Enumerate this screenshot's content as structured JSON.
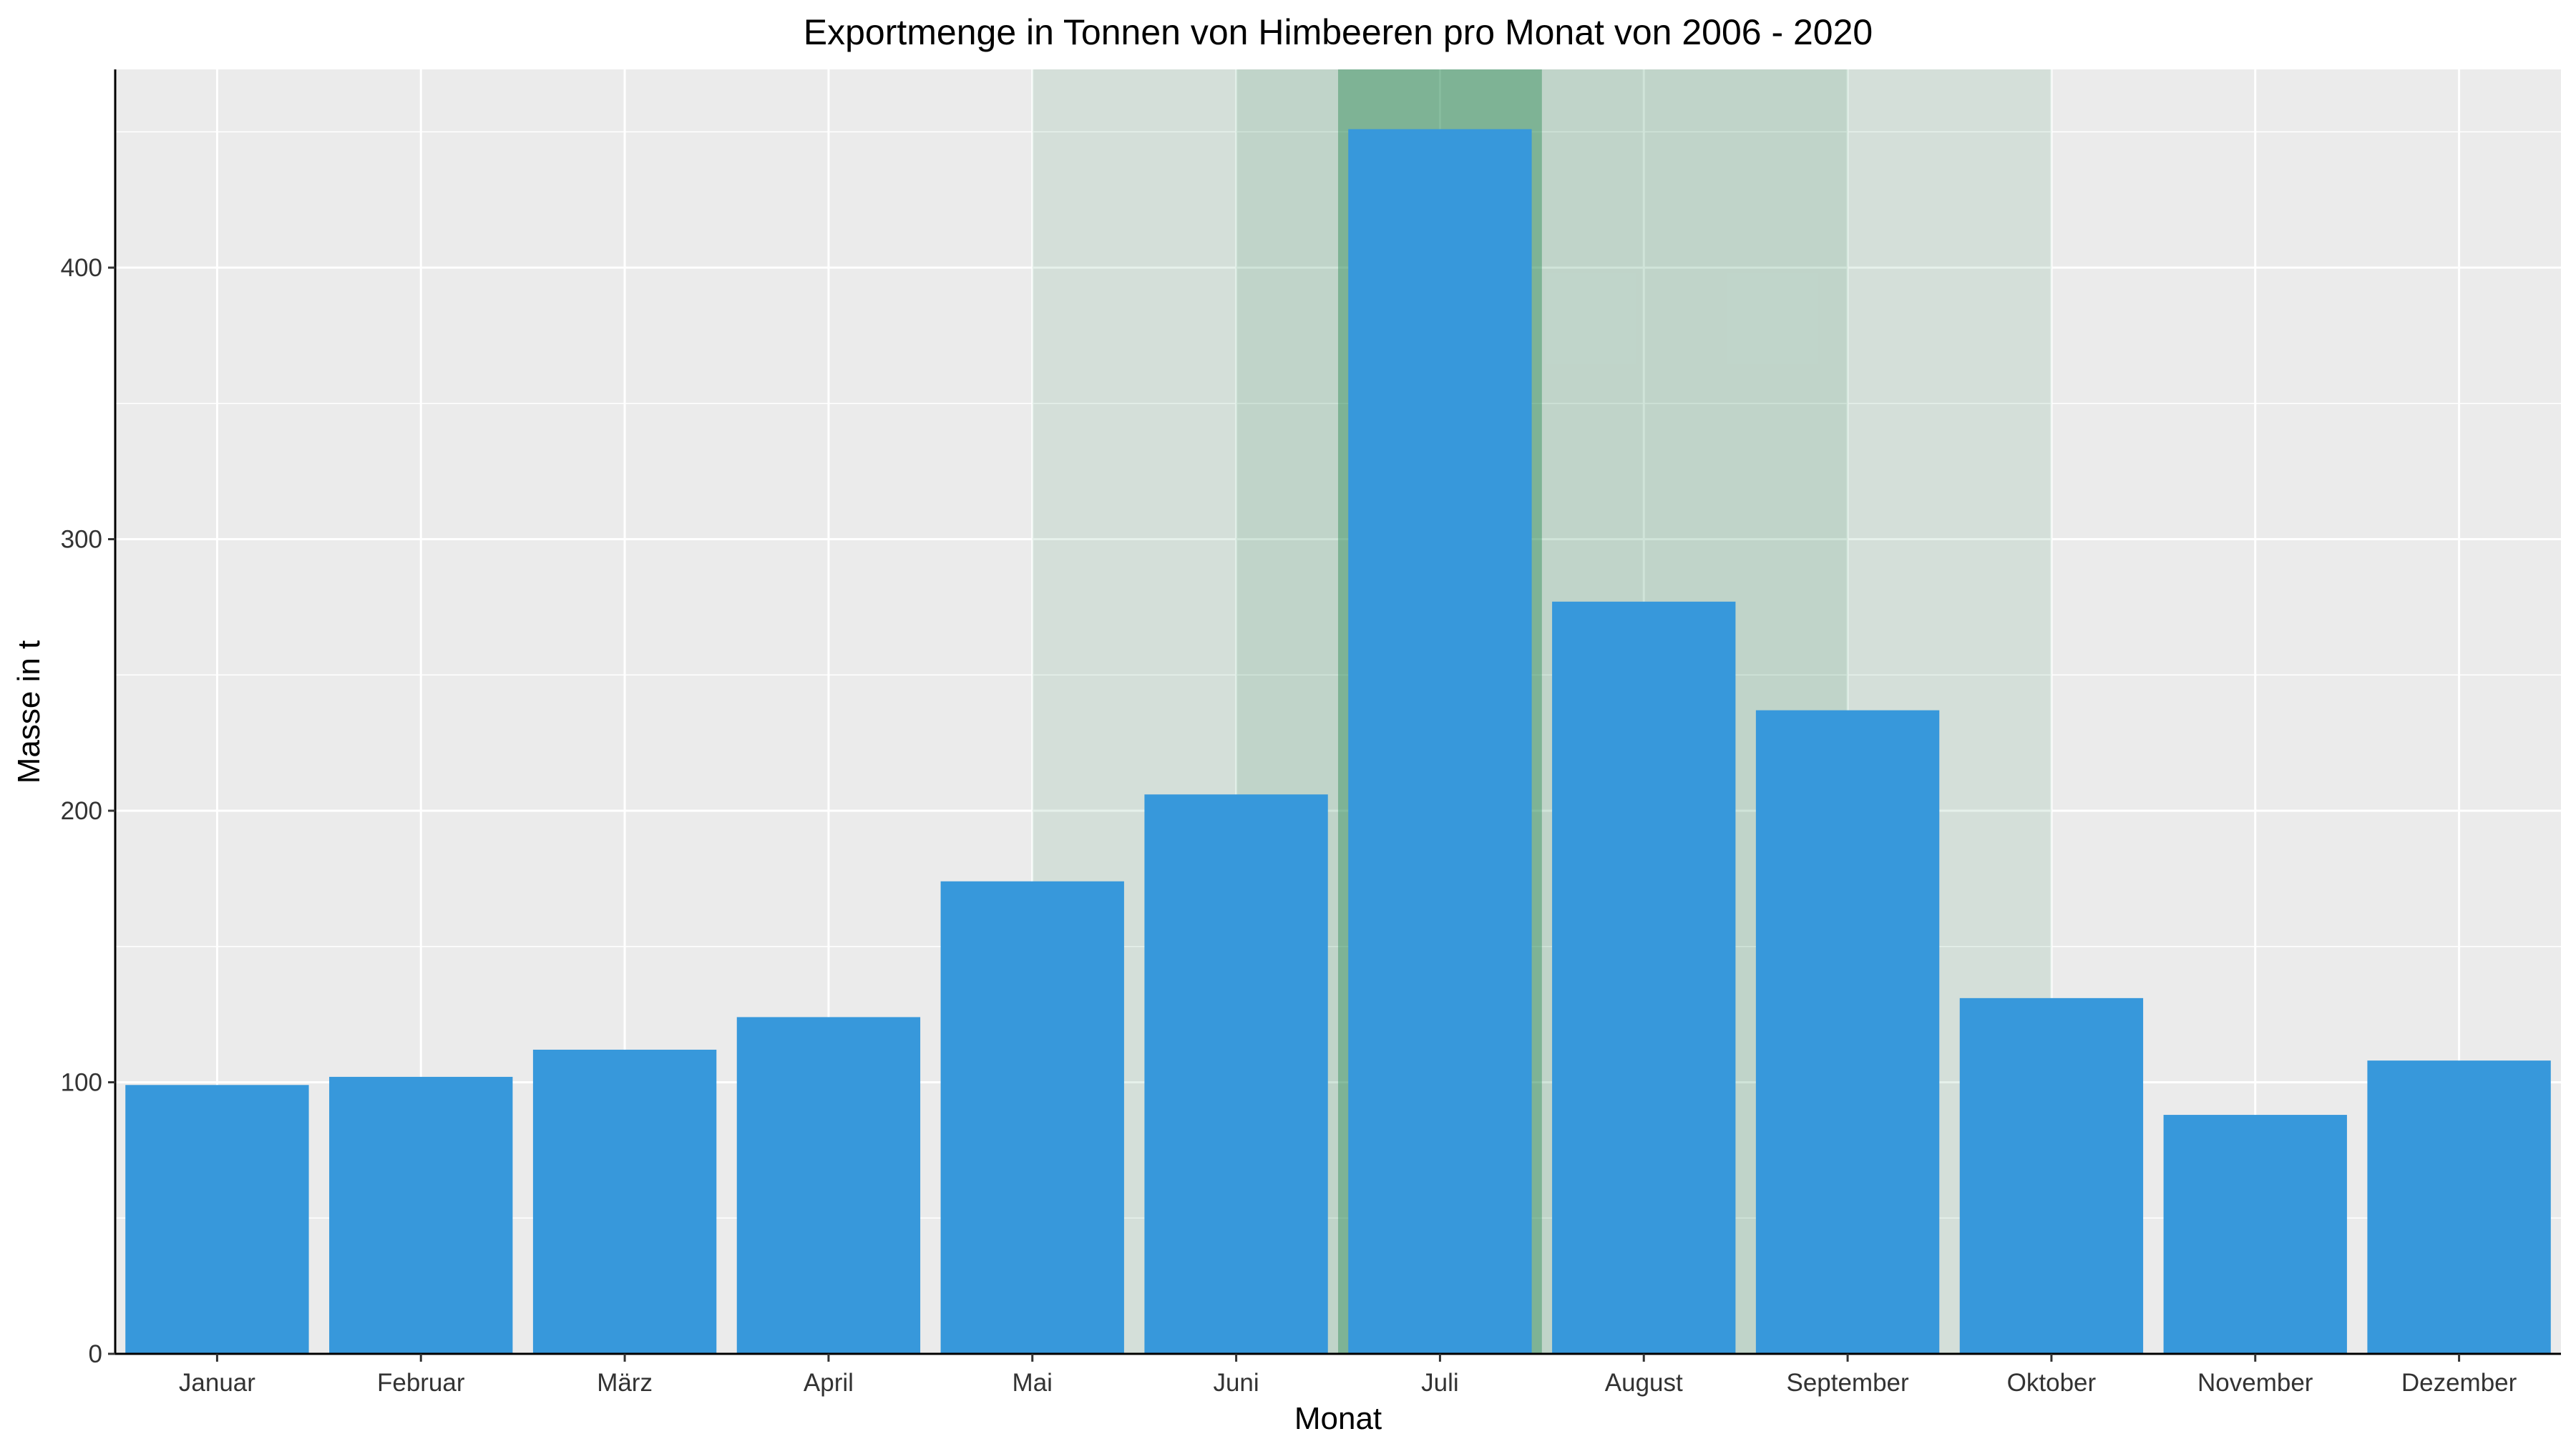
{
  "chart_data": {
    "type": "bar",
    "title": "Exportmenge in Tonnen von Himbeeren pro Monat von 2006 - 2020",
    "xlabel": "Monat",
    "ylabel": "Masse in t",
    "categories": [
      "Januar",
      "Februar",
      "März",
      "April",
      "Mai",
      "Juni",
      "Juli",
      "August",
      "September",
      "Oktober",
      "November",
      "Dezember"
    ],
    "values": [
      99,
      102,
      112,
      124,
      174,
      206,
      451,
      277,
      237,
      131,
      88,
      108
    ],
    "ylim": [
      0,
      473
    ],
    "yticks": [
      0,
      100,
      200,
      300,
      400
    ],
    "grid": true,
    "legend": "none",
    "bar_color": "#3798db",
    "panel_color": "#ebebeb",
    "highlight_color": "#2e8b57",
    "highlight_bands": [
      {
        "from": "Mai",
        "to": "Oktober",
        "opacity": 0.12
      },
      {
        "from": "Juni",
        "to": "September",
        "opacity": 0.12
      },
      {
        "from": "Juli",
        "to": "Juli",
        "opacity": 0.45
      }
    ]
  }
}
